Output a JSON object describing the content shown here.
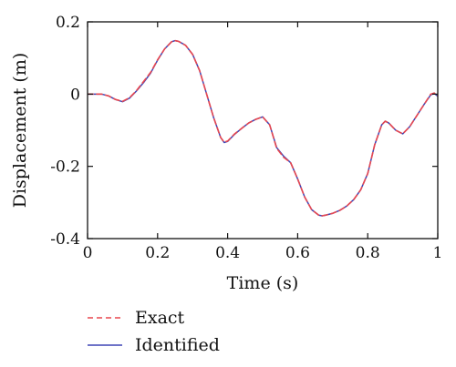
{
  "colors": {
    "exact": "#e8474f",
    "identified": "#3f45b5",
    "axis": "#111111"
  },
  "chart_data": {
    "type": "line",
    "title": "",
    "xlabel": "Time (s)",
    "ylabel": "Displacement (m)",
    "xlim": [
      0,
      1
    ],
    "ylim": [
      -0.4,
      0.2
    ],
    "xticks": [
      0,
      0.2,
      0.4,
      0.6,
      0.8,
      1
    ],
    "xtick_labels": [
      "0",
      "0.2",
      "0.4",
      "0.6",
      "0.8",
      "1"
    ],
    "yticks": [
      -0.4,
      -0.2,
      0,
      0.2
    ],
    "ytick_labels": [
      "-0.4",
      "-0.2",
      "0",
      "0.2"
    ],
    "grid": false,
    "legend_position": "below",
    "series": [
      {
        "name": "Exact",
        "style": "dashed",
        "color": "#e8474f",
        "x": [
          0,
          0.02,
          0.04,
          0.06,
          0.08,
          0.1,
          0.12,
          0.14,
          0.16,
          0.18,
          0.2,
          0.22,
          0.24,
          0.25,
          0.26,
          0.28,
          0.3,
          0.32,
          0.34,
          0.36,
          0.38,
          0.39,
          0.4,
          0.42,
          0.44,
          0.46,
          0.48,
          0.5,
          0.52,
          0.54,
          0.56,
          0.58,
          0.6,
          0.62,
          0.64,
          0.66,
          0.67,
          0.68,
          0.7,
          0.72,
          0.74,
          0.76,
          0.78,
          0.8,
          0.82,
          0.84,
          0.85,
          0.86,
          0.88,
          0.9,
          0.92,
          0.94,
          0.96,
          0.98,
          0.99,
          1.0
        ],
        "y": [
          0.0,
          0.0,
          0.0,
          -0.005,
          -0.015,
          -0.02,
          -0.01,
          0.01,
          0.035,
          0.06,
          0.095,
          0.125,
          0.145,
          0.148,
          0.146,
          0.135,
          0.11,
          0.065,
          0.0,
          -0.065,
          -0.12,
          -0.133,
          -0.13,
          -0.11,
          -0.095,
          -0.08,
          -0.07,
          -0.063,
          -0.085,
          -0.15,
          -0.175,
          -0.19,
          -0.235,
          -0.285,
          -0.32,
          -0.335,
          -0.337,
          -0.335,
          -0.33,
          -0.322,
          -0.31,
          -0.292,
          -0.265,
          -0.22,
          -0.14,
          -0.085,
          -0.075,
          -0.08,
          -0.1,
          -0.11,
          -0.09,
          -0.06,
          -0.03,
          0.0,
          0.003,
          -0.005
        ]
      },
      {
        "name": "Identified",
        "style": "solid",
        "color": "#3f45b5",
        "x": [
          0,
          0.02,
          0.04,
          0.06,
          0.08,
          0.1,
          0.12,
          0.14,
          0.16,
          0.18,
          0.2,
          0.22,
          0.24,
          0.25,
          0.26,
          0.28,
          0.3,
          0.32,
          0.34,
          0.36,
          0.38,
          0.39,
          0.4,
          0.42,
          0.44,
          0.46,
          0.48,
          0.5,
          0.52,
          0.54,
          0.56,
          0.58,
          0.6,
          0.62,
          0.64,
          0.66,
          0.67,
          0.68,
          0.7,
          0.72,
          0.74,
          0.76,
          0.78,
          0.8,
          0.82,
          0.84,
          0.85,
          0.86,
          0.88,
          0.9,
          0.92,
          0.94,
          0.96,
          0.98,
          0.99,
          1.0
        ],
        "y": [
          0.0,
          0.0,
          0.0,
          -0.005,
          -0.015,
          -0.021,
          -0.011,
          0.009,
          0.032,
          0.058,
          0.094,
          0.125,
          0.145,
          0.148,
          0.146,
          0.135,
          0.11,
          0.065,
          0.0,
          -0.065,
          -0.12,
          -0.134,
          -0.131,
          -0.111,
          -0.095,
          -0.08,
          -0.07,
          -0.063,
          -0.085,
          -0.148,
          -0.172,
          -0.19,
          -0.235,
          -0.285,
          -0.32,
          -0.335,
          -0.337,
          -0.335,
          -0.33,
          -0.322,
          -0.31,
          -0.292,
          -0.265,
          -0.22,
          -0.14,
          -0.085,
          -0.075,
          -0.08,
          -0.1,
          -0.11,
          -0.09,
          -0.06,
          -0.03,
          -0.002,
          0.002,
          -0.006
        ]
      }
    ]
  }
}
